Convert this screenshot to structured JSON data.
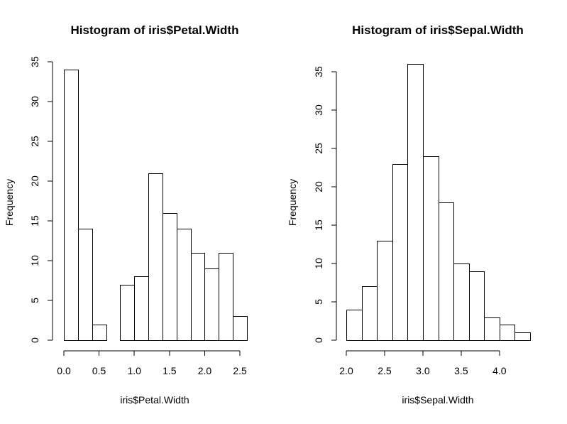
{
  "colors": {
    "background": "#ffffff",
    "bar_fill": "#ffffff",
    "bar_stroke": "#000000",
    "text": "#000000"
  },
  "chart_data": [
    {
      "type": "bar",
      "title": "Histogram of iris$Petal.Width",
      "xlabel": "iris$Petal.Width",
      "ylabel": "Frequency",
      "bin_edges": [
        0.0,
        0.2,
        0.4,
        0.6,
        0.8,
        1.0,
        1.2,
        1.4,
        1.6,
        1.8,
        2.0,
        2.2,
        2.4,
        2.6
      ],
      "values": [
        34,
        14,
        2,
        0,
        7,
        8,
        21,
        16,
        14,
        11,
        9,
        11,
        3
      ],
      "xlim": [
        0.0,
        2.6
      ],
      "ylim": [
        0,
        35
      ],
      "xticks": [
        "0.0",
        "0.5",
        "1.0",
        "1.5",
        "2.0",
        "2.5"
      ],
      "yticks": [
        "0",
        "5",
        "10",
        "15",
        "20",
        "25",
        "30",
        "35"
      ],
      "grid": false
    },
    {
      "type": "bar",
      "title": "Histogram of iris$Sepal.Width",
      "xlabel": "iris$Sepal.Width",
      "ylabel": "Frequency",
      "bin_edges": [
        2.0,
        2.2,
        2.4,
        2.6,
        2.8,
        3.0,
        3.2,
        3.4,
        3.6,
        3.8,
        4.0,
        4.2,
        4.4
      ],
      "values": [
        4,
        7,
        13,
        23,
        36,
        24,
        18,
        10,
        9,
        3,
        2,
        1
      ],
      "xlim": [
        2.0,
        4.4
      ],
      "ylim": [
        0,
        35
      ],
      "xticks": [
        "2.0",
        "2.5",
        "3.0",
        "3.5",
        "4.0"
      ],
      "yticks": [
        "0",
        "5",
        "10",
        "15",
        "20",
        "25",
        "30",
        "35"
      ],
      "grid": false
    }
  ]
}
